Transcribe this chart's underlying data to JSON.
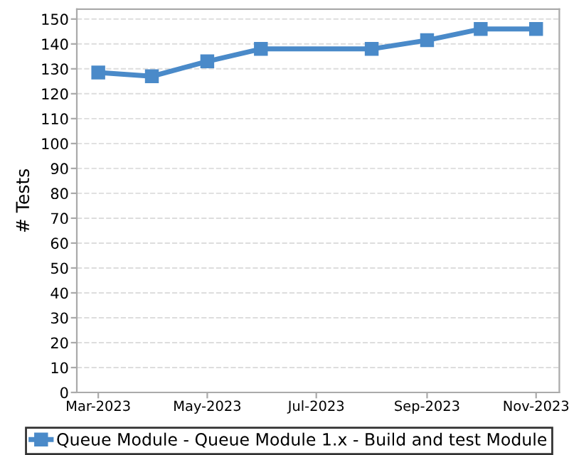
{
  "chart_data": {
    "type": "line",
    "ylabel": "# Tests",
    "x": [
      "2023-03-01",
      "2023-03-31",
      "2023-05-01",
      "2023-05-31",
      "2023-08-01",
      "2023-09-01",
      "2023-10-01",
      "2023-11-01"
    ],
    "series": [
      {
        "name": "Queue Module - Queue Module 1.x - Build and test Module",
        "color": "#4a8ac9",
        "values": [
          128.5,
          127,
          133,
          138,
          138,
          141.5,
          146,
          146
        ]
      }
    ],
    "xlim": [
      "2023-02-17",
      "2023-11-14"
    ],
    "xticks": [
      {
        "value": "2023-03-01",
        "label": "Mar-2023"
      },
      {
        "value": "2023-05-01",
        "label": "May-2023"
      },
      {
        "value": "2023-07-01",
        "label": "Jul-2023"
      },
      {
        "value": "2023-09-01",
        "label": "Sep-2023"
      },
      {
        "value": "2023-11-01",
        "label": "Nov-2023"
      }
    ],
    "ylim": [
      0,
      154
    ],
    "yticks": [
      0,
      10,
      20,
      30,
      40,
      50,
      60,
      70,
      80,
      90,
      100,
      110,
      120,
      130,
      140,
      150
    ],
    "grid": "y",
    "legend": "bottom",
    "marker": "square",
    "line_style": "solid"
  }
}
